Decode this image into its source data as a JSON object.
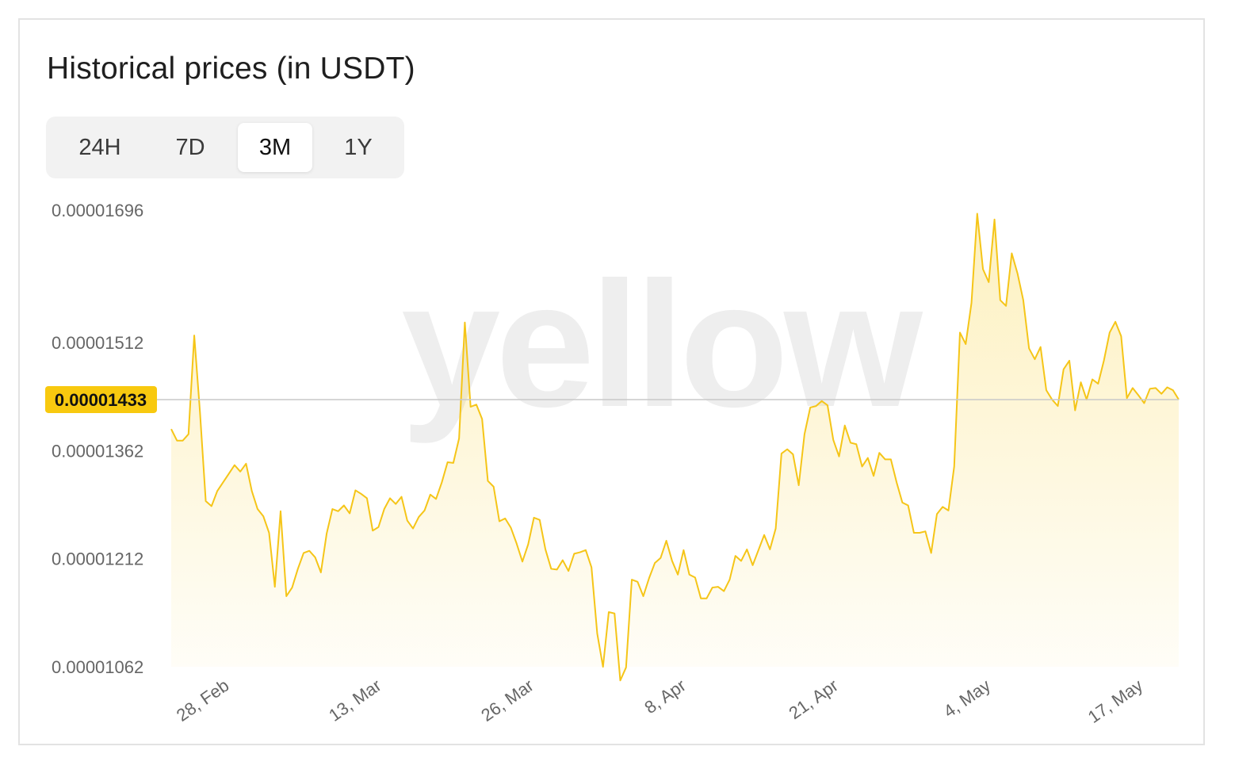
{
  "header": {
    "title": "Historical prices (in USDT)"
  },
  "tabs": [
    {
      "label": "24H",
      "active": false
    },
    {
      "label": "7D",
      "active": false
    },
    {
      "label": "3M",
      "active": true
    },
    {
      "label": "1Y",
      "active": false
    }
  ],
  "watermark": {
    "text": "yellow"
  },
  "colors": {
    "line": "#f5c518",
    "badge": "#f8c90f",
    "reference_line": "#c9c9c9",
    "axis_text": "#666666"
  },
  "chart_data": {
    "type": "area",
    "title": "Historical prices (in USDT)",
    "xlabel": "",
    "ylabel": "",
    "ylim": [
      1.062e-05,
      1.696e-05
    ],
    "y_ticks": [
      "0.00001696",
      "0.00001512",
      "0.00001362",
      "0.00001212",
      "0.00001062"
    ],
    "y_tick_values": [
      1.696e-05,
      1.512e-05,
      1.362e-05,
      1.212e-05,
      1.062e-05
    ],
    "x_ticks": [
      "28, Feb",
      "13, Mar",
      "26, Mar",
      "8, Apr",
      "21, Apr",
      "4, May",
      "17, May"
    ],
    "x_tick_days": [
      2,
      15,
      28,
      41,
      54,
      67,
      80
    ],
    "x_range_days": [
      0,
      86
    ],
    "current_value_label": "0.00001433",
    "current_value": 1.433e-05,
    "grid": false,
    "legend": "none",
    "series": [
      {
        "values": [
          1.392e-05,
          1.376e-05,
          1.376e-05,
          1.385e-05,
          1.522e-05,
          1.415e-05,
          1.292e-05,
          1.285e-05,
          1.306e-05,
          1.318e-05,
          1.33e-05,
          1.342e-05,
          1.333e-05,
          1.344e-05,
          1.306e-05,
          1.281e-05,
          1.271e-05,
          1.248e-05,
          1.173e-05,
          1.278e-05,
          1.16e-05,
          1.172e-05,
          1.198e-05,
          1.22e-05,
          1.223e-05,
          1.214e-05,
          1.193e-05,
          1.247e-05,
          1.281e-05,
          1.278e-05,
          1.286e-05,
          1.275e-05,
          1.307e-05,
          1.302e-05,
          1.296e-05,
          1.251e-05,
          1.256e-05,
          1.281e-05,
          1.296e-05,
          1.288e-05,
          1.298e-05,
          1.265e-05,
          1.254e-05,
          1.27e-05,
          1.279e-05,
          1.301e-05,
          1.295e-05,
          1.318e-05,
          1.346e-05,
          1.345e-05,
          1.379e-05,
          1.54e-05,
          1.423e-05,
          1.426e-05,
          1.406e-05,
          1.32e-05,
          1.312e-05,
          1.264e-05,
          1.268e-05,
          1.255e-05,
          1.233e-05,
          1.208e-05,
          1.232e-05,
          1.269e-05,
          1.266e-05,
          1.225e-05,
          1.198e-05,
          1.197e-05,
          1.21e-05,
          1.195e-05,
          1.219e-05,
          1.221e-05,
          1.224e-05,
          1.2e-05,
          1.108e-05,
          1.062e-05,
          1.138e-05,
          1.136e-05,
          1.043e-05,
          1.061e-05,
          1.183e-05,
          1.18e-05,
          1.16e-05,
          1.185e-05,
          1.206e-05,
          1.213e-05,
          1.237e-05,
          1.209e-05,
          1.19e-05,
          1.224e-05,
          1.19e-05,
          1.186e-05,
          1.157e-05,
          1.157e-05,
          1.172e-05,
          1.173e-05,
          1.167e-05,
          1.183e-05,
          1.216e-05,
          1.209e-05,
          1.225e-05,
          1.203e-05,
          1.224e-05,
          1.245e-05,
          1.225e-05,
          1.254e-05,
          1.358e-05,
          1.364e-05,
          1.357e-05,
          1.314e-05,
          1.385e-05,
          1.422e-05,
          1.424e-05,
          1.431e-05,
          1.425e-05,
          1.377e-05,
          1.354e-05,
          1.397e-05,
          1.373e-05,
          1.371e-05,
          1.34e-05,
          1.352e-05,
          1.327e-05,
          1.359e-05,
          1.35e-05,
          1.35e-05,
          1.318e-05,
          1.29e-05,
          1.286e-05,
          1.248e-05,
          1.248e-05,
          1.25e-05,
          1.22e-05,
          1.274e-05,
          1.284e-05,
          1.279e-05,
          1.34e-05,
          1.526e-05,
          1.51e-05,
          1.567e-05,
          1.691e-05,
          1.614e-05,
          1.596e-05,
          1.683e-05,
          1.571e-05,
          1.563e-05,
          1.636e-05,
          1.608e-05,
          1.571e-05,
          1.504e-05,
          1.489e-05,
          1.506e-05,
          1.446e-05,
          1.433e-05,
          1.424e-05,
          1.475e-05,
          1.487e-05,
          1.418e-05,
          1.457e-05,
          1.433e-05,
          1.461e-05,
          1.455e-05,
          1.487e-05,
          1.526e-05,
          1.541e-05,
          1.521e-05,
          1.435e-05,
          1.449e-05,
          1.439e-05,
          1.428e-05,
          1.448e-05,
          1.449e-05,
          1.441e-05,
          1.45e-05,
          1.446e-05,
          1.433e-05
        ]
      }
    ]
  }
}
